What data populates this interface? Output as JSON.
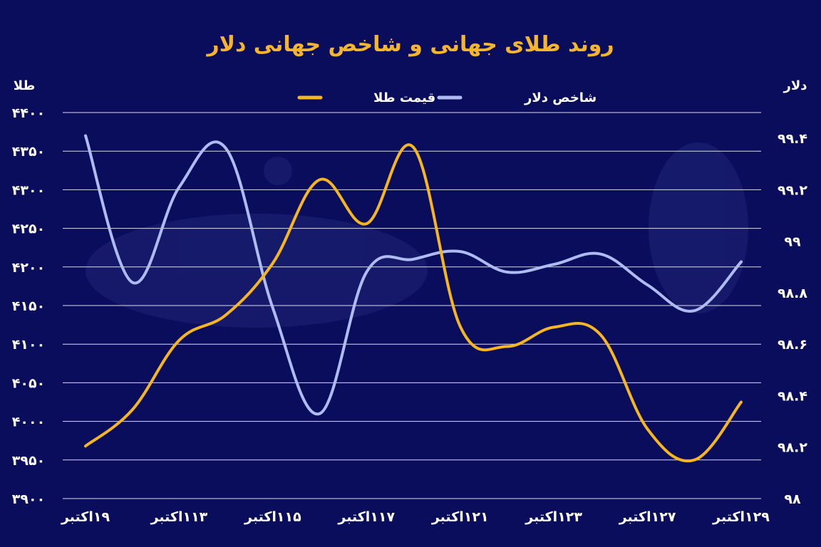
{
  "title": "روند طلای جهانی و شاخص جهانی دلار",
  "colors": {
    "background": "#0a0d5c",
    "title": "#f7b52c",
    "gold": "#f6b620",
    "dollar": "#aebcf2",
    "grid": "#ffffff"
  },
  "chart_data": {
    "type": "line",
    "title": "روند طلای جهانی و شاخص جهانی دلار",
    "x": [
      "۱۹اکتبر",
      "",
      "۱۱۳اکتبر",
      "",
      "۱۱۵اکتبر",
      "",
      "۱۱۷اکتبر",
      "",
      "۱۲۱اکتبر",
      "",
      "۱۲۳اکتبر",
      "",
      "۱۲۷اکتبر",
      "",
      "۱۲۹اکتبر"
    ],
    "x_tick_labels": [
      "۱۹اکتبر",
      "۱۱۳اکتبر",
      "۱۱۵اکتبر",
      "۱۱۷اکتبر",
      "۱۲۱اکتبر",
      "۱۲۳اکتبر",
      "۱۲۷اکتبر",
      "۱۲۹اکتبر"
    ],
    "left_axis": {
      "label": "طلا",
      "ylim": [
        3900,
        4400
      ],
      "ticks": [
        "۴۴۰۰",
        "۴۳۵۰",
        "۴۳۰۰",
        "۴۲۵۰",
        "۴۲۰۰",
        "۴۱۵۰",
        "۴۱۰۰",
        "۴۰۵۰",
        "۴۰۰۰",
        "۳۹۵۰",
        "۳۹۰۰"
      ]
    },
    "right_axis": {
      "label": "دلار",
      "ylim": [
        98.0,
        99.5
      ],
      "ticks": [
        "۹۹.۴",
        "۹۹.۲",
        "۹۹",
        "۹۸.۸",
        "۹۸.۶",
        "۹۸.۴",
        "۹۸.۲",
        "۹۸"
      ]
    },
    "series": [
      {
        "name": "شاخص دلار",
        "axis": "right",
        "values": [
          99.41,
          98.84,
          99.21,
          99.36,
          98.74,
          98.33,
          98.88,
          98.93,
          98.96,
          98.88,
          98.91,
          98.95,
          98.83,
          98.73,
          98.92
        ]
      },
      {
        "name": "قیمت طلا",
        "axis": "left",
        "values": [
          3968,
          4015,
          4105,
          4138,
          4205,
          4313,
          4256,
          4355,
          4123,
          4097,
          4122,
          4112,
          3990,
          3950,
          4025
        ]
      }
    ],
    "grid": true,
    "legend_position": "top-center"
  }
}
